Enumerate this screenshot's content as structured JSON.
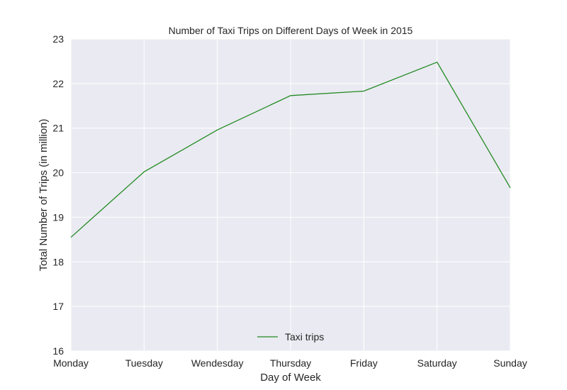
{
  "chart_data": {
    "type": "line",
    "title": "Number of Taxi Trips on Different Days of Week in 2015",
    "xlabel": "Day of Week",
    "ylabel": "Total Number of Trips (in million)",
    "categories": [
      "Monday",
      "Tuesday",
      "Wendesday",
      "Thursday",
      "Friday",
      "Saturday",
      "Sunday"
    ],
    "series": [
      {
        "name": "Taxi trips",
        "color": "#228B22",
        "values": [
          18.55,
          20.02,
          20.96,
          21.73,
          21.83,
          22.48,
          19.66
        ]
      }
    ],
    "ylim": [
      16,
      23
    ],
    "yticks": [
      "16",
      "17",
      "18",
      "19",
      "20",
      "21",
      "22",
      "23"
    ],
    "grid": true,
    "legend_position": "bottom-center",
    "background_color": "#EAEAF2"
  }
}
